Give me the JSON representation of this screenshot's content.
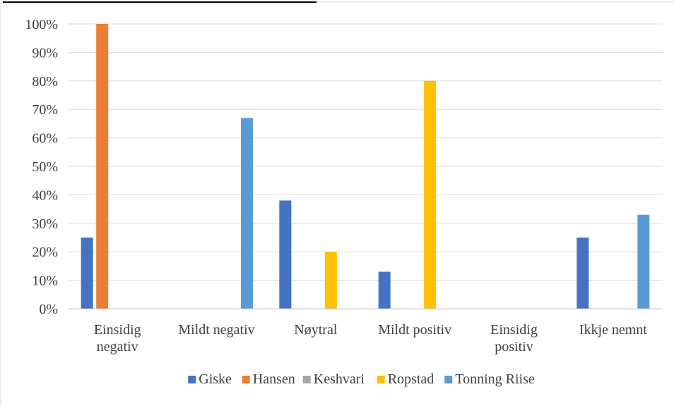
{
  "chart_data": {
    "type": "bar",
    "title": "",
    "xlabel": "",
    "ylabel": "",
    "ylim": [
      0,
      100
    ],
    "ytick_step": 10,
    "yunit": "%",
    "grid": true,
    "legend_position": "bottom",
    "categories": [
      [
        "Einsidig",
        "negativ"
      ],
      [
        "Mildt negativ"
      ],
      [
        "Nøytral"
      ],
      [
        "Mildt positiv"
      ],
      [
        "Einsidig",
        "positiv"
      ],
      [
        "Ikkje nemnt"
      ]
    ],
    "series": [
      {
        "name": "Giske",
        "color": "#4472C4",
        "values": [
          25,
          0,
          38,
          13,
          0,
          25
        ]
      },
      {
        "name": "Hansen",
        "color": "#ED7D31",
        "values": [
          100,
          0,
          0,
          0,
          0,
          0
        ]
      },
      {
        "name": "Keshvari",
        "color": "#A5A5A5",
        "values": [
          0,
          0,
          0,
          0,
          0,
          0
        ]
      },
      {
        "name": "Ropstad",
        "color": "#FFC000",
        "values": [
          0,
          0,
          20,
          80,
          0,
          0
        ]
      },
      {
        "name": "Tonning Riise",
        "color": "#5B9BD5",
        "values": [
          0,
          67,
          0,
          0,
          0,
          33
        ]
      }
    ]
  }
}
